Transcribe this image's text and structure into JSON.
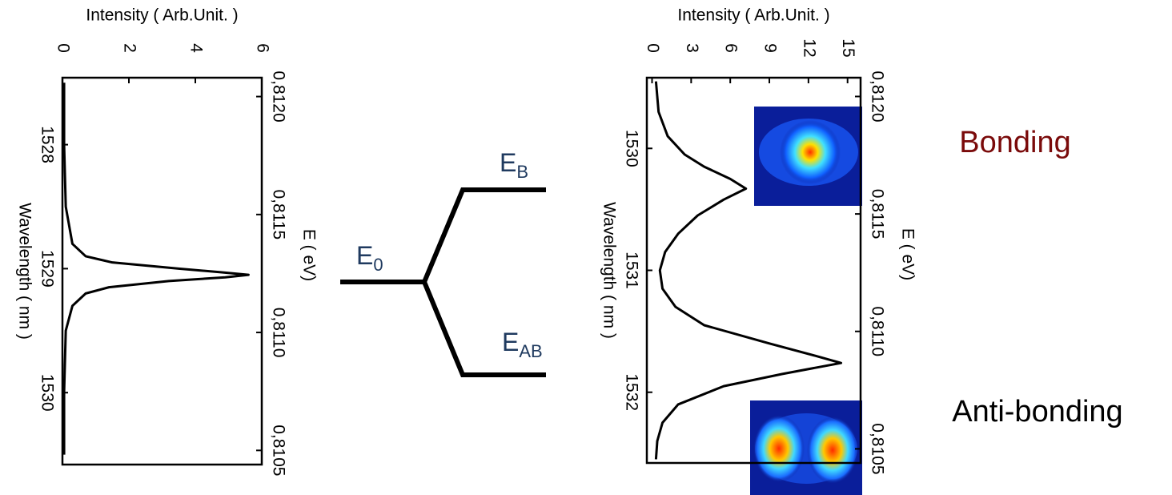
{
  "chart_data": [
    {
      "type": "line",
      "x_label": "Wavelength  ( nm )",
      "y_label": "Intensity  ( Arb.Unit. )",
      "x2_label": "E ( eV)",
      "x": [
        1527.5,
        1528,
        1528.5,
        1528.8,
        1528.9,
        1528.95,
        1529,
        1529.03,
        1529.05,
        1529.07,
        1529.1,
        1529.15,
        1529.2,
        1529.3,
        1529.5,
        1530,
        1530.5
      ],
      "series": [
        {
          "color": "#000000",
          "values": [
            0.05,
            0.05,
            0.1,
            0.3,
            0.7,
            1.5,
            3.5,
            4.8,
            5.6,
            4.9,
            3.2,
            1.4,
            0.7,
            0.3,
            0.1,
            0.05,
            0.05
          ]
        }
      ],
      "xlim": [
        1527.46,
        1530.58
      ],
      "xticks": [
        1528,
        1529,
        1530
      ],
      "ylim": [
        0,
        6
      ],
      "yticks": [
        0,
        2,
        4,
        6
      ],
      "x2lim": [
        0.81208,
        0.81044
      ],
      "x2ticks": [
        {
          "value": 0.812,
          "label": "0,8120"
        },
        {
          "value": 0.8115,
          "label": "0,8115"
        },
        {
          "value": 0.811,
          "label": "0,8110"
        },
        {
          "value": 0.8105,
          "label": "0,8105"
        }
      ]
    },
    {
      "type": "line",
      "x_label": "Wavelength  ( nm )",
      "y_label": "Intensity  ( Arb.Unit. )",
      "x2_label": "E ( eV)",
      "x": [
        1529.45,
        1529.7,
        1529.9,
        1530.05,
        1530.15,
        1530.25,
        1530.33,
        1530.42,
        1530.55,
        1530.7,
        1530.85,
        1531,
        1531.15,
        1531.3,
        1531.45,
        1531.6,
        1531.7,
        1531.76,
        1531.85,
        1531.95,
        1532.1,
        1532.25,
        1532.4,
        1532.55
      ],
      "series": [
        {
          "color": "#000000",
          "values": [
            0.3,
            0.5,
            1.2,
            2.5,
            4,
            6,
            7.2,
            5.5,
            3.5,
            2,
            1,
            0.6,
            0.8,
            1.8,
            4,
            9,
            12.5,
            14.5,
            10,
            5.5,
            2,
            0.8,
            0.4,
            0.3
          ]
        }
      ],
      "xlim": [
        1529.42,
        1532.58
      ],
      "xticks": [
        1530,
        1531,
        1532
      ],
      "ylim": [
        -0.4,
        16
      ],
      "yticks": [
        0,
        3,
        6,
        9,
        12,
        15
      ],
      "x2lim": [
        0.81208,
        0.81044
      ],
      "x2ticks": [
        {
          "value": 0.812,
          "label": "0,8120"
        },
        {
          "value": 0.8115,
          "label": "0,8115"
        },
        {
          "value": 0.811,
          "label": "0,8110"
        },
        {
          "value": 0.8105,
          "label": "0,8105"
        }
      ],
      "annotations": [
        "Bonding",
        "Anti-bonding"
      ]
    }
  ],
  "diagram": {
    "levels": [
      {
        "letter": "E",
        "sub": "0"
      },
      {
        "letter": "E",
        "sub": "B"
      },
      {
        "letter": "E",
        "sub": "AB"
      }
    ]
  }
}
